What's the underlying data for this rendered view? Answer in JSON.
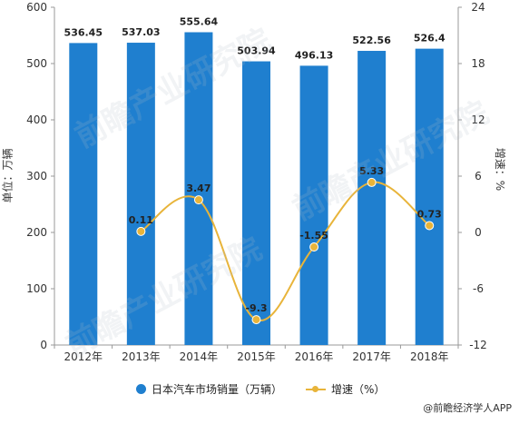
{
  "chart_data": {
    "type": "bar",
    "categories": [
      "2012年",
      "2013年",
      "2014年",
      "2015年",
      "2016年",
      "2017年",
      "2018年"
    ],
    "series": [
      {
        "name": "日本汽车市场销量（万辆）",
        "type": "bar",
        "axis": "left",
        "values": [
          536.45,
          537.03,
          555.64,
          503.94,
          496.13,
          522.56,
          526.4
        ],
        "labels": [
          "536.45",
          "537.03",
          "555.64",
          "503.94",
          "496.13",
          "522.56",
          "526.4"
        ]
      },
      {
        "name": "增速（%）",
        "type": "line",
        "axis": "right",
        "x": [
          "2013年",
          "2014年",
          "2015年",
          "2016年",
          "2017年",
          "2018年"
        ],
        "values": [
          0.11,
          3.47,
          -9.3,
          -1.55,
          5.33,
          0.73
        ],
        "labels": [
          "0.11",
          "3.47",
          "-9.3",
          "-1.55",
          "5.33",
          "0.73"
        ]
      }
    ],
    "ylabel": "单位：万辆",
    "y2label": "增速：%",
    "ylim": [
      0,
      600
    ],
    "y2lim": [
      -12,
      24
    ],
    "yticks": [
      "0",
      "100",
      "200",
      "300",
      "400",
      "500",
      "600"
    ],
    "y2ticks": [
      "-12",
      "-6",
      "0",
      "6",
      "12",
      "18",
      "24"
    ],
    "legend_position": "bottom",
    "grid": false,
    "colors": {
      "bar": "#1f7fcf",
      "line": "#e8b43a"
    }
  },
  "legend": {
    "bar_label": "日本汽车市场销量（万辆）",
    "line_label": "增速（%）"
  },
  "source": "@前瞻经济学人APP"
}
